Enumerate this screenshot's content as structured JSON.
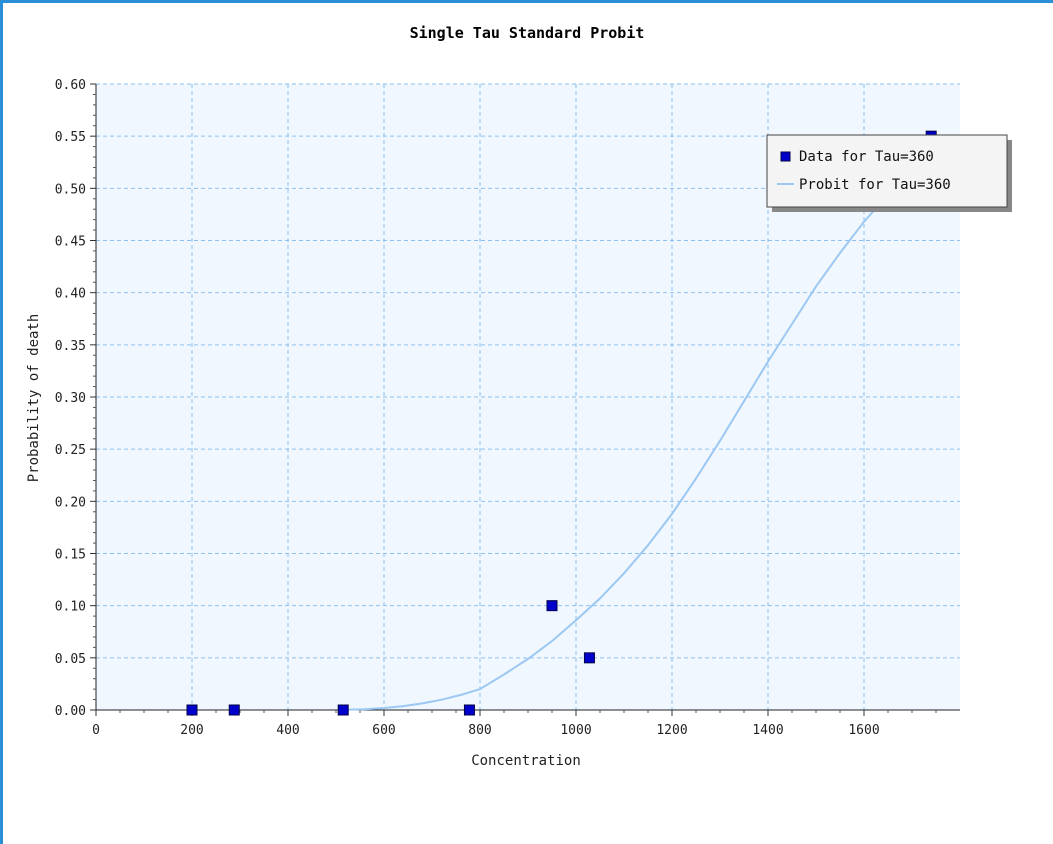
{
  "colors": {
    "frame": "#2a8fd6",
    "plot_bg": "#f0f7ff",
    "grid": "#8ec1ee",
    "marker_fill": "#0000cc",
    "marker_stroke": "#000044",
    "curve": "#9cc8f2"
  },
  "chart_data": {
    "type": "scatter",
    "title": "Single Tau Standard Probit",
    "xlabel": "Concentration",
    "ylabel": "Probability of death",
    "xlim": [
      0,
      1800
    ],
    "ylim": [
      0,
      0.6
    ],
    "x_ticks": [
      "0",
      "200",
      "400",
      "600",
      "800",
      "1000",
      "1200",
      "1400",
      "1600"
    ],
    "y_ticks": [
      "0.00",
      "0.05",
      "0.10",
      "0.15",
      "0.20",
      "0.25",
      "0.30",
      "0.35",
      "0.40",
      "0.45",
      "0.50",
      "0.55",
      "0.60"
    ],
    "grid": true,
    "legend_position": "top-right",
    "series": [
      {
        "name": "Data for Tau=360",
        "kind": "scatter",
        "x": [
          200,
          288,
          515,
          778,
          950,
          1028,
          1740
        ],
        "y": [
          0.0,
          0.0,
          0.0,
          0.0,
          0.1,
          0.05,
          0.55
        ]
      },
      {
        "name": "Probit for Tau=360",
        "kind": "line",
        "x": [
          520,
          560,
          600,
          640,
          680,
          720,
          760,
          800,
          850,
          900,
          950,
          1000,
          1050,
          1100,
          1150,
          1200,
          1250,
          1300,
          1350,
          1400,
          1450,
          1500,
          1550,
          1600,
          1650,
          1700,
          1750
        ],
        "y": [
          0.0002,
          0.0007,
          0.0019,
          0.0037,
          0.0063,
          0.0099,
          0.0145,
          0.02,
          0.034,
          0.049,
          0.066,
          0.086,
          0.107,
          0.131,
          0.158,
          0.188,
          0.222,
          0.258,
          0.296,
          0.334,
          0.37,
          0.406,
          0.438,
          0.468,
          0.494,
          0.517,
          0.536
        ]
      }
    ]
  }
}
